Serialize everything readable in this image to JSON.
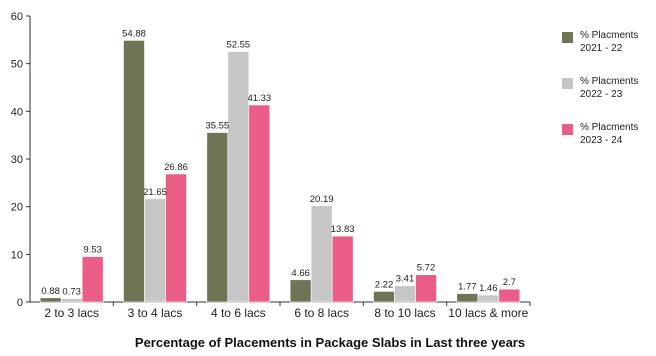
{
  "chart_data": {
    "type": "bar",
    "title": "Percentage of Placements in Package Slabs in Last three years",
    "xlabel": "",
    "ylabel": "",
    "ylim": [
      0,
      60
    ],
    "yticks": [
      0,
      10,
      20,
      30,
      40,
      50,
      60
    ],
    "grid": false,
    "legend_position": "right",
    "categories": [
      "2 to 3 lacs",
      "3 to 4 lacs",
      "4 to 6 lacs",
      "6 to 8 lacs",
      "8 to 10 lacs",
      "10 lacs & more"
    ],
    "series": [
      {
        "name": "% Placments 2021 - 22",
        "legend_lines": [
          "% Placments",
          "2021 - 22"
        ],
        "color": "#6e7554",
        "values": [
          0.88,
          54.88,
          35.55,
          4.66,
          2.22,
          1.77
        ]
      },
      {
        "name": "% Placments 2022 - 23",
        "legend_lines": [
          "% Placments",
          "2022 - 23"
        ],
        "color": "#c6c6c6",
        "values": [
          0.73,
          21.65,
          52.55,
          20.19,
          3.41,
          1.46
        ]
      },
      {
        "name": "% Placments 2023 - 24",
        "legend_lines": [
          "% Placments",
          "2023 - 24"
        ],
        "color": "#ea5d87",
        "values": [
          9.53,
          26.86,
          41.33,
          13.83,
          5.72,
          2.7
        ]
      }
    ],
    "data_labels": [
      [
        "0.88",
        "54.88",
        "35.55",
        "4.66",
        "2.22",
        "1.77"
      ],
      [
        "0.73",
        "21.65",
        "52.55",
        "20.19",
        "3.41",
        "1.46"
      ],
      [
        "9.53",
        "26.86",
        "41.33",
        "13.83",
        "5.72",
        "2.7"
      ]
    ]
  }
}
